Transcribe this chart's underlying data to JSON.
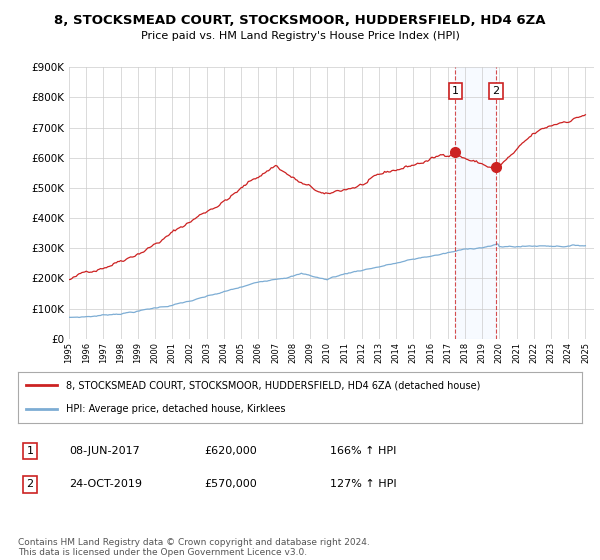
{
  "title": "8, STOCKSMEAD COURT, STOCKSMOOR, HUDDERSFIELD, HD4 6ZA",
  "subtitle": "Price paid vs. HM Land Registry's House Price Index (HPI)",
  "ylim": [
    0,
    900000
  ],
  "yticks": [
    0,
    100000,
    200000,
    300000,
    400000,
    500000,
    600000,
    700000,
    800000,
    900000
  ],
  "ytick_labels": [
    "£0",
    "£100K",
    "£200K",
    "£300K",
    "£400K",
    "£500K",
    "£600K",
    "£700K",
    "£800K",
    "£900K"
  ],
  "hpi_color": "#7dadd4",
  "price_color": "#cc2222",
  "sale1_year": 2017.44,
  "sale1_price": 620000,
  "sale2_year": 2019.81,
  "sale2_price": 570000,
  "legend_property": "8, STOCKSMEAD COURT, STOCKSMOOR, HUDDERSFIELD, HD4 6ZA (detached house)",
  "legend_hpi": "HPI: Average price, detached house, Kirklees",
  "table_row1": [
    "1",
    "08-JUN-2017",
    "£620,000",
    "166% ↑ HPI"
  ],
  "table_row2": [
    "2",
    "24-OCT-2019",
    "£570,000",
    "127% ↑ HPI"
  ],
  "footer": "Contains HM Land Registry data © Crown copyright and database right 2024.\nThis data is licensed under the Open Government Licence v3.0.",
  "background_color": "#ffffff",
  "grid_color": "#cccccc",
  "shade_color": "#cce0ff"
}
